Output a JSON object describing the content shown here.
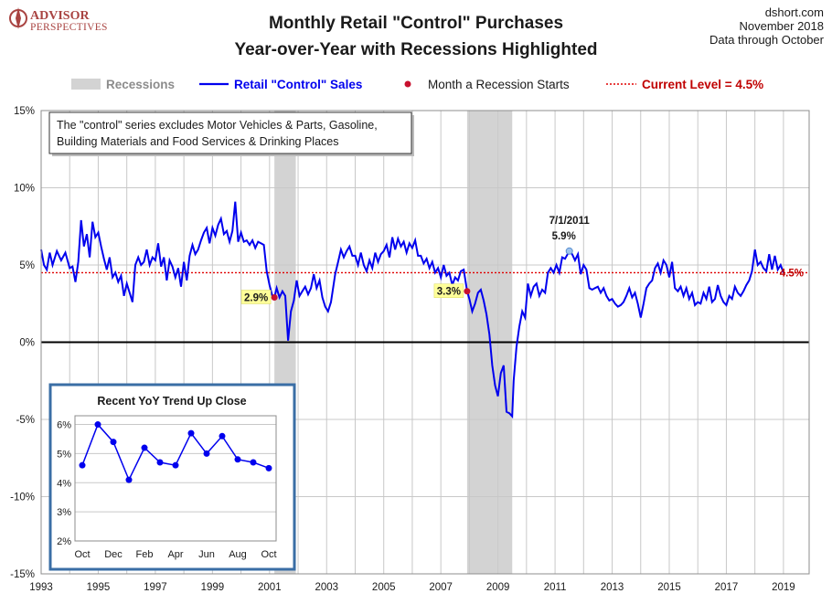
{
  "chart_data": [
    {
      "type": "line",
      "title": "Monthly Retail \"Control\" Purchases",
      "subtitle": "Year-over-Year with Recessions Highlighted",
      "source_lines": [
        "dshort.com",
        "November 2018",
        "Data through October"
      ],
      "logo": {
        "line1": "ADVISOR",
        "line2": "PERSPECTIVES"
      },
      "legend": {
        "recessions": "Recessions",
        "series": "Retail \"Control\" Sales",
        "recession_start": "Month a Recession Starts",
        "current_level": "Current Level = 4.5%"
      },
      "note_lines": [
        "The \"control\" series excludes Motor Vehicles & Parts, Gasoline,",
        "Building Materials and Food Services & Drinking Places"
      ],
      "xlim": [
        1993,
        2019.9
      ],
      "ylim": [
        -15,
        15
      ],
      "y_ticks": [
        15,
        10,
        5,
        0,
        -5,
        -10,
        -15
      ],
      "y_tick_labels": [
        "15%",
        "10%",
        "5%",
        "0%",
        "-5%",
        "-10%",
        "-15%"
      ],
      "x_ticks": [
        1993,
        1995,
        1997,
        1999,
        2001,
        2003,
        2005,
        2007,
        2009,
        2011,
        2013,
        2015,
        2017,
        2019
      ],
      "x_tick_labels": [
        "1993",
        "1995",
        "1997",
        "1999",
        "2001",
        "2003",
        "2005",
        "2007",
        "2009",
        "2011",
        "2013",
        "2015",
        "2017",
        "2019"
      ],
      "recessions": [
        [
          2001.17,
          2001.92
        ],
        [
          2007.92,
          2009.5
        ]
      ],
      "current_level": 4.5,
      "current_label": "4.5%",
      "series_name": "Retail \"Control\" Sales",
      "series_points": [
        [
          1993.0,
          6.0
        ],
        [
          1993.1,
          5.0
        ],
        [
          1993.2,
          4.7
        ],
        [
          1993.3,
          5.8
        ],
        [
          1993.4,
          5.0
        ],
        [
          1993.55,
          5.9
        ],
        [
          1993.7,
          5.3
        ],
        [
          1993.85,
          5.8
        ],
        [
          1994.0,
          4.8
        ],
        [
          1994.1,
          4.9
        ],
        [
          1994.2,
          3.9
        ],
        [
          1994.3,
          5.2
        ],
        [
          1994.4,
          7.9
        ],
        [
          1994.5,
          6.2
        ],
        [
          1994.6,
          7.0
        ],
        [
          1994.7,
          5.5
        ],
        [
          1994.8,
          7.8
        ],
        [
          1994.9,
          6.8
        ],
        [
          1995.0,
          7.1
        ],
        [
          1995.1,
          6.2
        ],
        [
          1995.2,
          5.4
        ],
        [
          1995.3,
          4.7
        ],
        [
          1995.4,
          5.5
        ],
        [
          1995.5,
          4.2
        ],
        [
          1995.6,
          4.5
        ],
        [
          1995.7,
          3.9
        ],
        [
          1995.8,
          4.3
        ],
        [
          1995.9,
          3.0
        ],
        [
          1996.0,
          3.8
        ],
        [
          1996.1,
          3.2
        ],
        [
          1996.2,
          2.6
        ],
        [
          1996.3,
          5.0
        ],
        [
          1996.4,
          5.5
        ],
        [
          1996.5,
          5.0
        ],
        [
          1996.6,
          5.2
        ],
        [
          1996.7,
          6.0
        ],
        [
          1996.8,
          5.0
        ],
        [
          1996.9,
          5.5
        ],
        [
          1997.0,
          5.3
        ],
        [
          1997.1,
          6.4
        ],
        [
          1997.2,
          4.9
        ],
        [
          1997.3,
          5.5
        ],
        [
          1997.4,
          4.0
        ],
        [
          1997.5,
          5.3
        ],
        [
          1997.6,
          4.9
        ],
        [
          1997.7,
          4.2
        ],
        [
          1997.8,
          4.8
        ],
        [
          1997.9,
          3.6
        ],
        [
          1998.0,
          5.2
        ],
        [
          1998.1,
          4.0
        ],
        [
          1998.2,
          5.6
        ],
        [
          1998.3,
          6.3
        ],
        [
          1998.4,
          5.7
        ],
        [
          1998.5,
          6.0
        ],
        [
          1998.6,
          6.6
        ],
        [
          1998.7,
          7.1
        ],
        [
          1998.8,
          7.4
        ],
        [
          1998.9,
          6.4
        ],
        [
          1999.0,
          7.4
        ],
        [
          1999.1,
          6.9
        ],
        [
          1999.2,
          7.6
        ],
        [
          1999.3,
          8.0
        ],
        [
          1999.4,
          7.0
        ],
        [
          1999.5,
          7.2
        ],
        [
          1999.6,
          6.5
        ],
        [
          1999.7,
          7.2
        ],
        [
          1999.8,
          9.1
        ],
        [
          1999.9,
          6.5
        ],
        [
          2000.0,
          7.1
        ],
        [
          2000.1,
          6.5
        ],
        [
          2000.2,
          6.6
        ],
        [
          2000.3,
          6.3
        ],
        [
          2000.4,
          6.6
        ],
        [
          2000.5,
          6.1
        ],
        [
          2000.6,
          6.5
        ],
        [
          2000.7,
          6.4
        ],
        [
          2000.8,
          6.3
        ],
        [
          2000.9,
          4.6
        ],
        [
          2001.0,
          3.7
        ],
        [
          2001.1,
          3.0
        ],
        [
          2001.17,
          2.9
        ],
        [
          2001.25,
          3.5
        ],
        [
          2001.35,
          2.9
        ],
        [
          2001.45,
          3.3
        ],
        [
          2001.55,
          3.0
        ],
        [
          2001.65,
          0.1
        ],
        [
          2001.75,
          2.0
        ],
        [
          2001.85,
          2.7
        ],
        [
          2001.95,
          4.0
        ],
        [
          2002.05,
          3.0
        ],
        [
          2002.15,
          3.3
        ],
        [
          2002.25,
          3.6
        ],
        [
          2002.35,
          3.1
        ],
        [
          2002.45,
          3.5
        ],
        [
          2002.55,
          4.4
        ],
        [
          2002.65,
          3.5
        ],
        [
          2002.75,
          4.0
        ],
        [
          2002.85,
          2.9
        ],
        [
          2002.95,
          2.3
        ],
        [
          2003.05,
          2.0
        ],
        [
          2003.15,
          2.6
        ],
        [
          2003.3,
          4.4
        ],
        [
          2003.4,
          5.2
        ],
        [
          2003.5,
          6.0
        ],
        [
          2003.6,
          5.5
        ],
        [
          2003.7,
          5.9
        ],
        [
          2003.8,
          6.2
        ],
        [
          2003.9,
          5.6
        ],
        [
          2004.0,
          5.6
        ],
        [
          2004.1,
          5.0
        ],
        [
          2004.2,
          5.8
        ],
        [
          2004.3,
          5.0
        ],
        [
          2004.4,
          4.6
        ],
        [
          2004.5,
          5.3
        ],
        [
          2004.6,
          4.8
        ],
        [
          2004.7,
          5.8
        ],
        [
          2004.8,
          5.2
        ],
        [
          2004.9,
          5.7
        ],
        [
          2005.0,
          5.9
        ],
        [
          2005.1,
          6.3
        ],
        [
          2005.2,
          5.5
        ],
        [
          2005.3,
          6.8
        ],
        [
          2005.4,
          6.0
        ],
        [
          2005.5,
          6.7
        ],
        [
          2005.6,
          6.2
        ],
        [
          2005.7,
          6.5
        ],
        [
          2005.8,
          5.8
        ],
        [
          2005.9,
          6.4
        ],
        [
          2006.0,
          6.1
        ],
        [
          2006.1,
          6.6
        ],
        [
          2006.2,
          5.6
        ],
        [
          2006.3,
          5.6
        ],
        [
          2006.4,
          5.1
        ],
        [
          2006.5,
          5.4
        ],
        [
          2006.6,
          4.8
        ],
        [
          2006.7,
          5.2
        ],
        [
          2006.8,
          4.5
        ],
        [
          2006.9,
          4.8
        ],
        [
          2007.0,
          4.2
        ],
        [
          2007.1,
          5.0
        ],
        [
          2007.2,
          4.3
        ],
        [
          2007.3,
          4.5
        ],
        [
          2007.4,
          3.7
        ],
        [
          2007.5,
          4.2
        ],
        [
          2007.6,
          4.0
        ],
        [
          2007.7,
          4.6
        ],
        [
          2007.8,
          4.7
        ],
        [
          2007.92,
          3.3
        ],
        [
          2008.0,
          2.8
        ],
        [
          2008.1,
          2.0
        ],
        [
          2008.2,
          2.5
        ],
        [
          2008.3,
          3.2
        ],
        [
          2008.4,
          3.4
        ],
        [
          2008.5,
          2.7
        ],
        [
          2008.6,
          1.8
        ],
        [
          2008.7,
          0.5
        ],
        [
          2008.8,
          -1.5
        ],
        [
          2008.9,
          -2.8
        ],
        [
          2009.0,
          -3.5
        ],
        [
          2009.1,
          -2.0
        ],
        [
          2009.2,
          -1.5
        ],
        [
          2009.3,
          -4.5
        ],
        [
          2009.4,
          -4.6
        ],
        [
          2009.5,
          -4.8
        ],
        [
          2009.55,
          -2.5
        ],
        [
          2009.65,
          -0.3
        ],
        [
          2009.75,
          1.0
        ],
        [
          2009.85,
          2.0
        ],
        [
          2009.95,
          1.6
        ],
        [
          2010.05,
          3.8
        ],
        [
          2010.15,
          3.0
        ],
        [
          2010.25,
          3.6
        ],
        [
          2010.35,
          3.8
        ],
        [
          2010.45,
          3.0
        ],
        [
          2010.55,
          3.4
        ],
        [
          2010.65,
          3.2
        ],
        [
          2010.75,
          4.5
        ],
        [
          2010.85,
          4.8
        ],
        [
          2010.95,
          4.5
        ],
        [
          2011.05,
          5.0
        ],
        [
          2011.15,
          4.5
        ],
        [
          2011.25,
          5.5
        ],
        [
          2011.35,
          5.4
        ],
        [
          2011.5,
          5.9
        ],
        [
          2011.6,
          5.7
        ],
        [
          2011.7,
          5.3
        ],
        [
          2011.8,
          5.7
        ],
        [
          2011.9,
          4.4
        ],
        [
          2012.0,
          5.0
        ],
        [
          2012.1,
          4.7
        ],
        [
          2012.2,
          3.5
        ],
        [
          2012.3,
          3.4
        ],
        [
          2012.4,
          3.5
        ],
        [
          2012.5,
          3.6
        ],
        [
          2012.6,
          3.2
        ],
        [
          2012.7,
          3.5
        ],
        [
          2012.8,
          3.0
        ],
        [
          2012.9,
          2.7
        ],
        [
          2013.0,
          2.8
        ],
        [
          2013.1,
          2.5
        ],
        [
          2013.2,
          2.3
        ],
        [
          2013.3,
          2.4
        ],
        [
          2013.4,
          2.6
        ],
        [
          2013.5,
          3.0
        ],
        [
          2013.6,
          3.5
        ],
        [
          2013.7,
          2.9
        ],
        [
          2013.8,
          3.2
        ],
        [
          2013.9,
          2.5
        ],
        [
          2014.0,
          1.6
        ],
        [
          2014.1,
          2.5
        ],
        [
          2014.2,
          3.5
        ],
        [
          2014.3,
          3.8
        ],
        [
          2014.4,
          4.0
        ],
        [
          2014.5,
          4.8
        ],
        [
          2014.6,
          5.1
        ],
        [
          2014.7,
          4.5
        ],
        [
          2014.8,
          5.3
        ],
        [
          2014.9,
          5.0
        ],
        [
          2015.0,
          4.2
        ],
        [
          2015.1,
          5.2
        ],
        [
          2015.2,
          3.5
        ],
        [
          2015.3,
          3.3
        ],
        [
          2015.4,
          3.6
        ],
        [
          2015.5,
          3.0
        ],
        [
          2015.6,
          3.5
        ],
        [
          2015.7,
          2.8
        ],
        [
          2015.8,
          3.2
        ],
        [
          2015.9,
          2.4
        ],
        [
          2016.0,
          2.6
        ],
        [
          2016.1,
          2.5
        ],
        [
          2016.2,
          3.2
        ],
        [
          2016.3,
          2.8
        ],
        [
          2016.4,
          3.6
        ],
        [
          2016.5,
          2.6
        ],
        [
          2016.6,
          2.8
        ],
        [
          2016.7,
          3.7
        ],
        [
          2016.8,
          3.0
        ],
        [
          2016.9,
          2.6
        ],
        [
          2017.0,
          2.4
        ],
        [
          2017.1,
          3.0
        ],
        [
          2017.2,
          2.8
        ],
        [
          2017.3,
          3.6
        ],
        [
          2017.4,
          3.2
        ],
        [
          2017.5,
          3.0
        ],
        [
          2017.6,
          3.3
        ],
        [
          2017.7,
          3.7
        ],
        [
          2017.8,
          4.0
        ],
        [
          2017.9,
          4.6
        ],
        [
          2018.0,
          6.0
        ],
        [
          2018.1,
          5.0
        ],
        [
          2018.2,
          5.2
        ],
        [
          2018.3,
          4.8
        ],
        [
          2018.4,
          4.6
        ],
        [
          2018.5,
          5.7
        ],
        [
          2018.6,
          4.7
        ],
        [
          2018.7,
          5.6
        ],
        [
          2018.8,
          4.7
        ],
        [
          2018.9,
          5.0
        ],
        [
          2019.0,
          4.5
        ]
      ],
      "recession_start_markers": [
        {
          "x": 2001.17,
          "y": 2.9,
          "label": "2.9%"
        },
        {
          "x": 2007.92,
          "y": 3.3,
          "label": "3.3%"
        }
      ],
      "peak_annotation": {
        "x": 2011.5,
        "y": 5.9,
        "date": "7/1/2011",
        "value": "5.9%"
      },
      "inset": {
        "title": "Recent  YoY Trend Up Close",
        "categories": [
          "Oct",
          "Nov",
          "Dec",
          "Jan",
          "Feb",
          "Mar",
          "Apr",
          "May",
          "Jun",
          "Jul",
          "Aug",
          "Sep",
          "Oct"
        ],
        "x_tick_labels": [
          "Oct",
          "Dec",
          "Feb",
          "Apr",
          "Jun",
          "Aug",
          "Oct"
        ],
        "values": [
          4.6,
          6.0,
          5.4,
          4.1,
          5.2,
          4.7,
          4.6,
          5.7,
          5.0,
          5.6,
          4.8,
          4.7,
          4.5
        ],
        "ylim": [
          2,
          6.3
        ],
        "y_ticks": [
          6,
          5,
          4,
          3,
          2
        ],
        "y_tick_labels": [
          "6%",
          "5%",
          "4%",
          "3%",
          "2%"
        ]
      },
      "colors": {
        "series": "#0000ee",
        "recession_fill": "#d3d3d3",
        "current_level": "#e00000",
        "recession_marker": "#c8102e",
        "label_bg": "#ffff99",
        "inset_border": "#3a6ea5",
        "peak_marker": "#9ec4ef",
        "grid": "#c8c8c8",
        "logo": "#a94442"
      }
    }
  ]
}
